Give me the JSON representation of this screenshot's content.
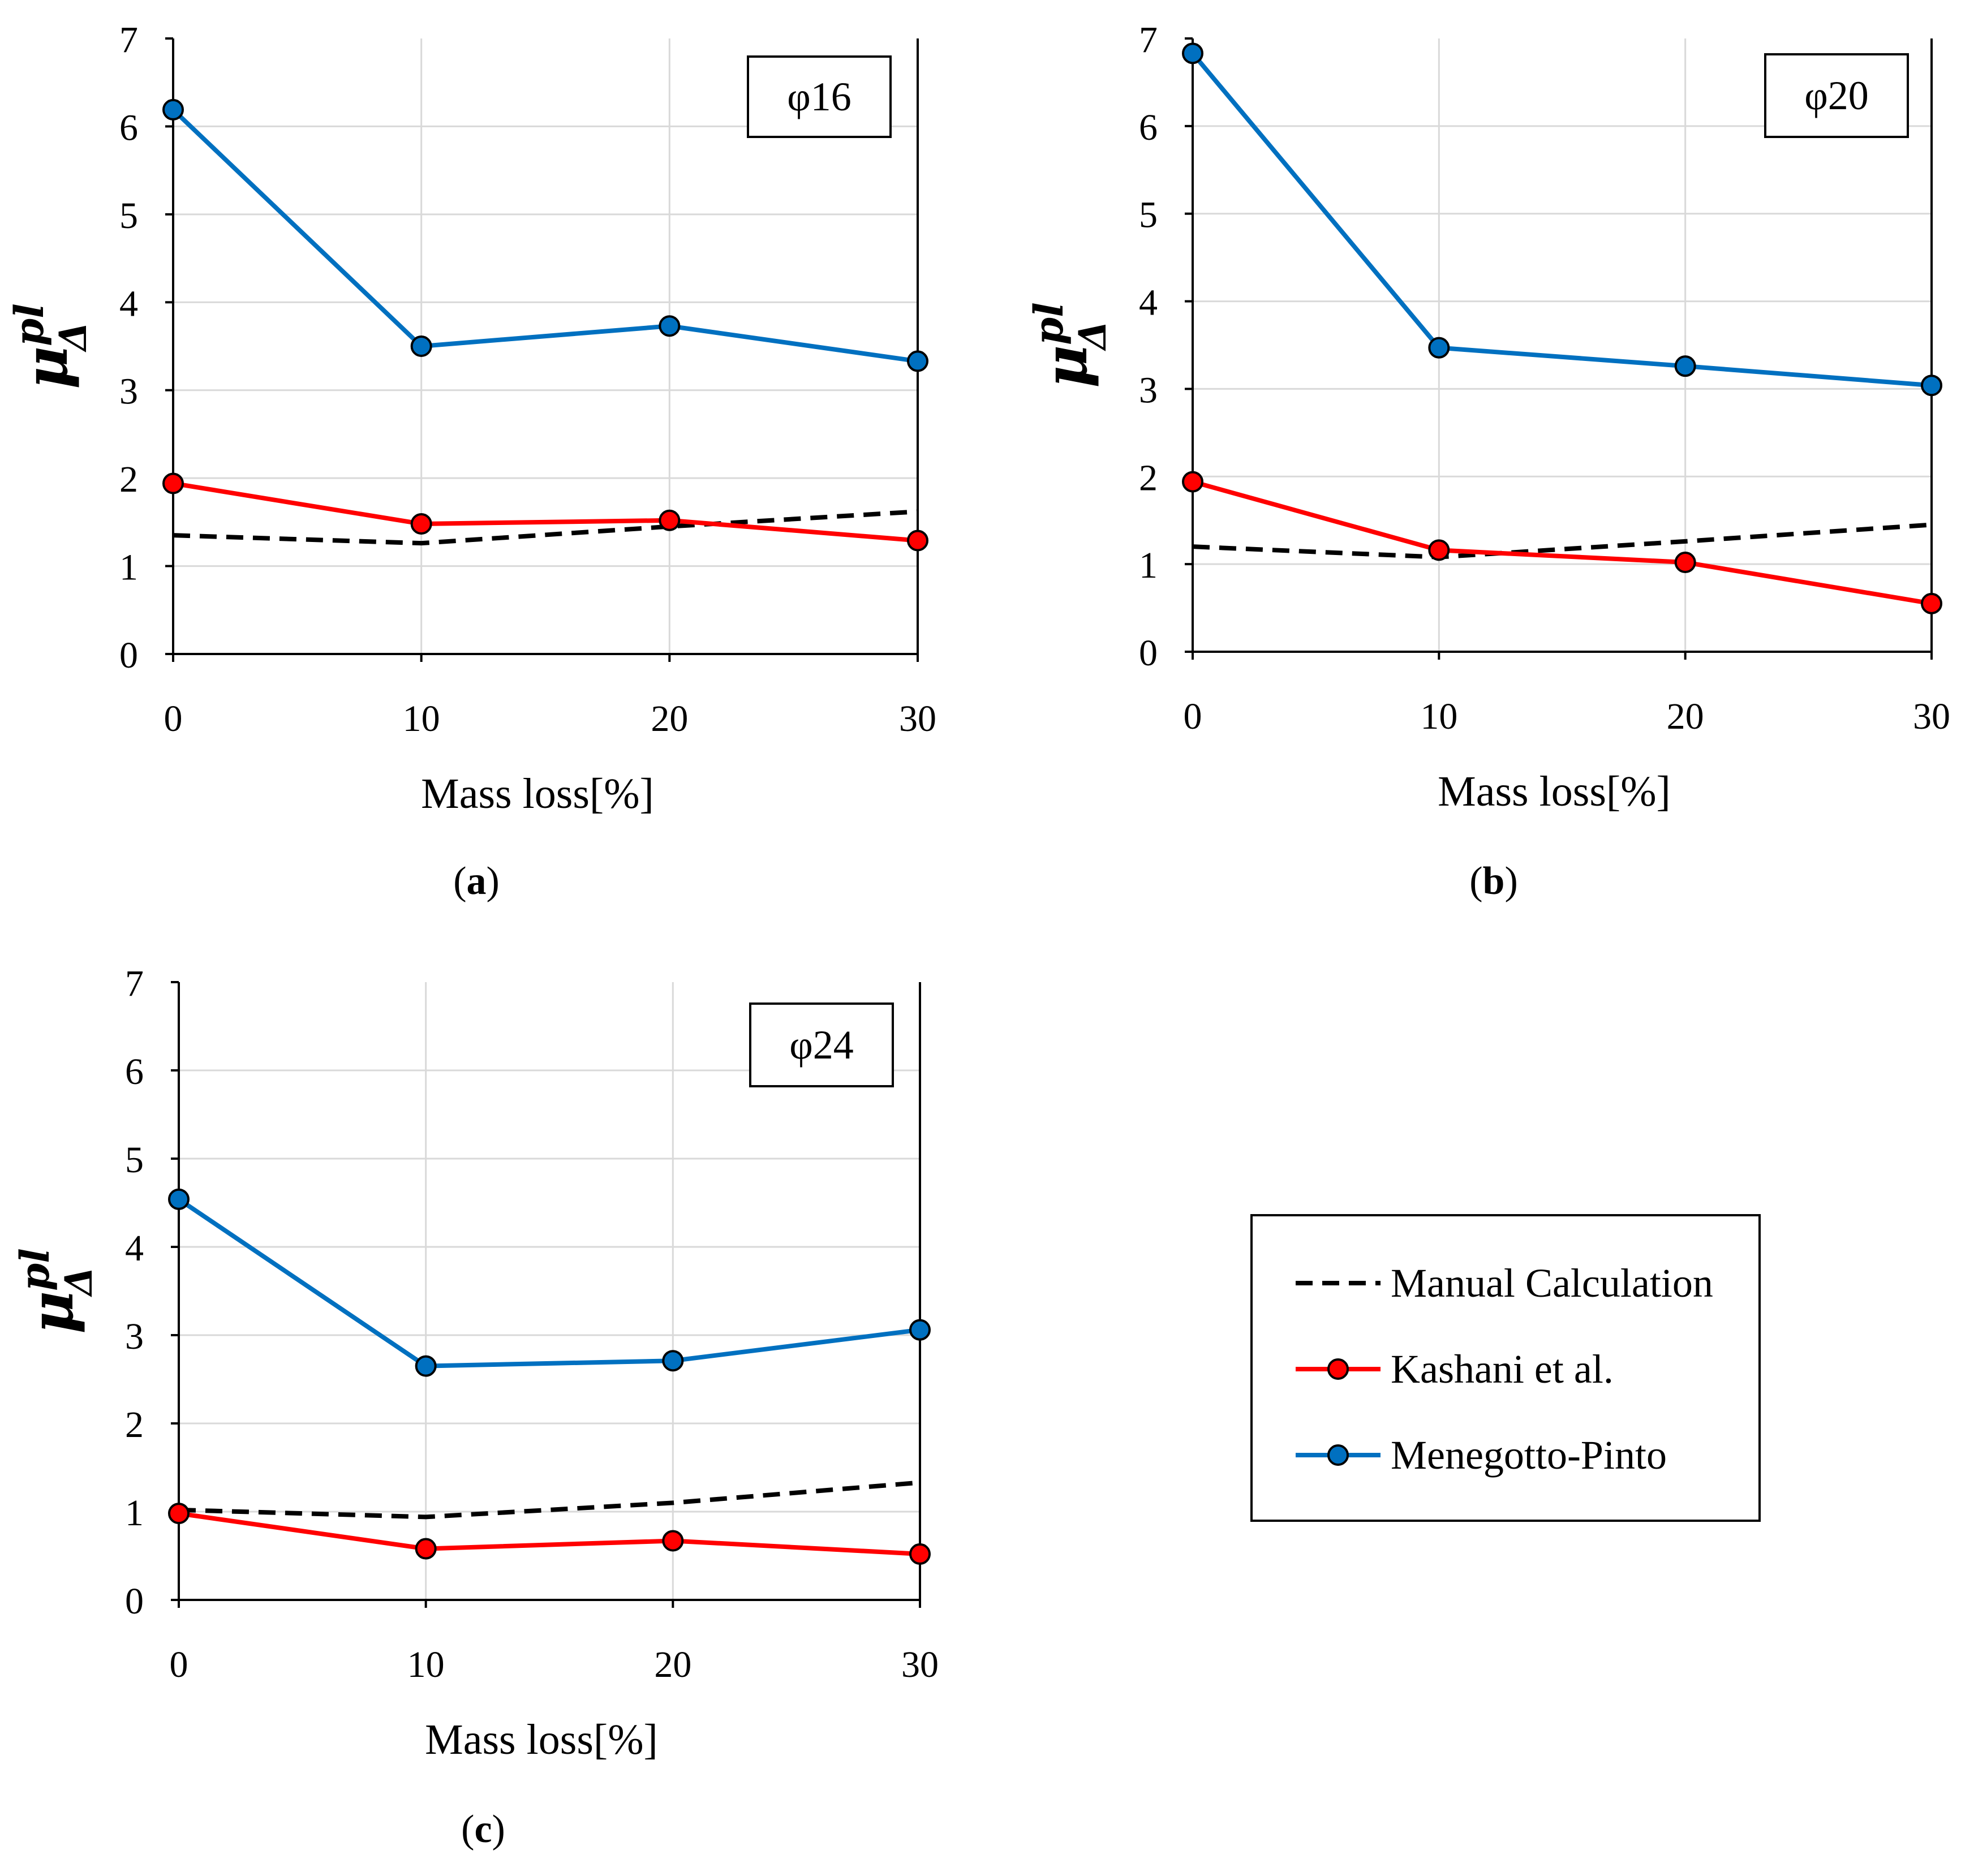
{
  "figure": {
    "legend": {
      "entries": [
        {
          "label": "Manual Calculation",
          "color": "#000000",
          "style": "dashed",
          "marker": false
        },
        {
          "label": "Kashani et al.",
          "color": "#ff0000",
          "style": "solid",
          "marker": true
        },
        {
          "label": "Menegotto-Pinto",
          "color": "#0070c0",
          "style": "solid",
          "marker": true
        }
      ]
    },
    "ylabel_symbol": "μ",
    "ylabel_superscript": "pl",
    "ylabel_subscript": "Δ"
  },
  "chart_data": [
    {
      "type": "line",
      "panel_letter": "a",
      "panel_open": "(",
      "panel_close": ")",
      "inset_label": "φ16",
      "xlabel": "Mass loss[%]",
      "ylabel": "μΔpl",
      "x": [
        0,
        10,
        20,
        30
      ],
      "xlim": [
        0,
        30
      ],
      "ylim": [
        0,
        7
      ],
      "xticks": [
        "0",
        "10",
        "20",
        "30"
      ],
      "yticks": [
        "0",
        "1",
        "2",
        "3",
        "4",
        "5",
        "6",
        "7"
      ],
      "grid": true,
      "series": [
        {
          "name": "Manual Calculation",
          "color": "#000000",
          "dashed": true,
          "marker": false,
          "values": [
            1.35,
            1.26,
            1.45,
            1.62
          ]
        },
        {
          "name": "Kashani et al.",
          "color": "#ff0000",
          "dashed": false,
          "marker": true,
          "values": [
            1.94,
            1.48,
            1.52,
            1.29
          ]
        },
        {
          "name": "Menegotto-Pinto",
          "color": "#0070c0",
          "dashed": false,
          "marker": true,
          "values": [
            6.19,
            3.5,
            3.73,
            3.33
          ]
        }
      ]
    },
    {
      "type": "line",
      "panel_letter": "b",
      "panel_open": "(",
      "panel_close": ")",
      "inset_label": "φ20",
      "xlabel": "Mass loss[%]",
      "ylabel": "μΔpl",
      "x": [
        0,
        10,
        20,
        30
      ],
      "xlim": [
        0,
        30
      ],
      "ylim": [
        0,
        7
      ],
      "xticks": [
        "0",
        "10",
        "20",
        "30"
      ],
      "yticks": [
        "0",
        "1",
        "2",
        "3",
        "4",
        "5",
        "6",
        "7"
      ],
      "grid": true,
      "series": [
        {
          "name": "Manual Calculation",
          "color": "#000000",
          "dashed": true,
          "marker": false,
          "values": [
            1.2,
            1.08,
            1.26,
            1.45
          ]
        },
        {
          "name": "Kashani et al.",
          "color": "#ff0000",
          "dashed": false,
          "marker": true,
          "values": [
            1.94,
            1.16,
            1.02,
            0.55
          ]
        },
        {
          "name": "Menegotto-Pinto",
          "color": "#0070c0",
          "dashed": false,
          "marker": true,
          "values": [
            6.83,
            3.47,
            3.26,
            3.04
          ]
        }
      ]
    },
    {
      "type": "line",
      "panel_letter": "c",
      "panel_open": "(",
      "panel_close": ")",
      "inset_label": "φ24",
      "xlabel": "Mass loss[%]",
      "ylabel": "μΔpl",
      "x": [
        0,
        10,
        20,
        30
      ],
      "xlim": [
        0,
        30
      ],
      "ylim": [
        0,
        7
      ],
      "xticks": [
        "0",
        "10",
        "20",
        "30"
      ],
      "yticks": [
        "0",
        "1",
        "2",
        "3",
        "4",
        "5",
        "6",
        "7"
      ],
      "grid": true,
      "series": [
        {
          "name": "Manual Calculation",
          "color": "#000000",
          "dashed": true,
          "marker": false,
          "values": [
            1.02,
            0.94,
            1.1,
            1.33
          ]
        },
        {
          "name": "Kashani et al.",
          "color": "#ff0000",
          "dashed": false,
          "marker": true,
          "values": [
            0.98,
            0.58,
            0.67,
            0.52
          ]
        },
        {
          "name": "Menegotto-Pinto",
          "color": "#0070c0",
          "dashed": false,
          "marker": true,
          "values": [
            4.54,
            2.65,
            2.71,
            3.06
          ]
        }
      ]
    }
  ]
}
